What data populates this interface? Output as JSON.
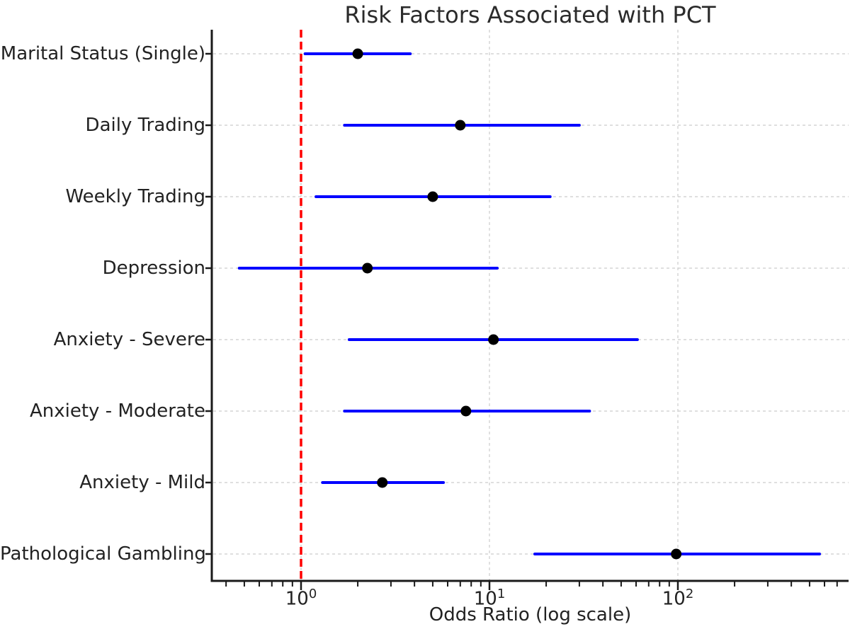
{
  "chart_data": {
    "type": "forest",
    "title": "Risk Factors Associated with PCT",
    "xlabel": "Odds Ratio (log scale)",
    "x_scale": "log10",
    "xlim": [
      0.34,
      800
    ],
    "grid": true,
    "reference_line": 1,
    "x_ticks": [
      {
        "value": 1,
        "base": "10",
        "exponent": "0"
      },
      {
        "value": 10,
        "base": "10",
        "exponent": "1"
      },
      {
        "value": 100,
        "base": "10",
        "exponent": "2"
      }
    ],
    "rows": [
      {
        "label": "Marital Status (Single)",
        "or": 2.0,
        "ci_low": 1.05,
        "ci_high": 3.8
      },
      {
        "label": "Daily Trading",
        "or": 7.0,
        "ci_low": 1.7,
        "ci_high": 30
      },
      {
        "label": "Weekly Trading",
        "or": 5.0,
        "ci_low": 1.2,
        "ci_high": 21
      },
      {
        "label": "Depression",
        "or": 2.25,
        "ci_low": 0.47,
        "ci_high": 11
      },
      {
        "label": "Anxiety - Severe",
        "or": 10.5,
        "ci_low": 1.8,
        "ci_high": 61
      },
      {
        "label": "Anxiety - Moderate",
        "or": 7.5,
        "ci_low": 1.7,
        "ci_high": 34
      },
      {
        "label": "Anxiety - Mild",
        "or": 2.7,
        "ci_low": 1.3,
        "ci_high": 5.7
      },
      {
        "label": "Pathological Gambling",
        "or": 98,
        "ci_low": 17.4,
        "ci_high": 565
      }
    ],
    "colors": {
      "ci_line": "#0000ff",
      "point": "#000000",
      "reference": "#ff0000",
      "grid": "#cccccc",
      "axis": "#1a1a1a",
      "text": "#222222"
    }
  }
}
